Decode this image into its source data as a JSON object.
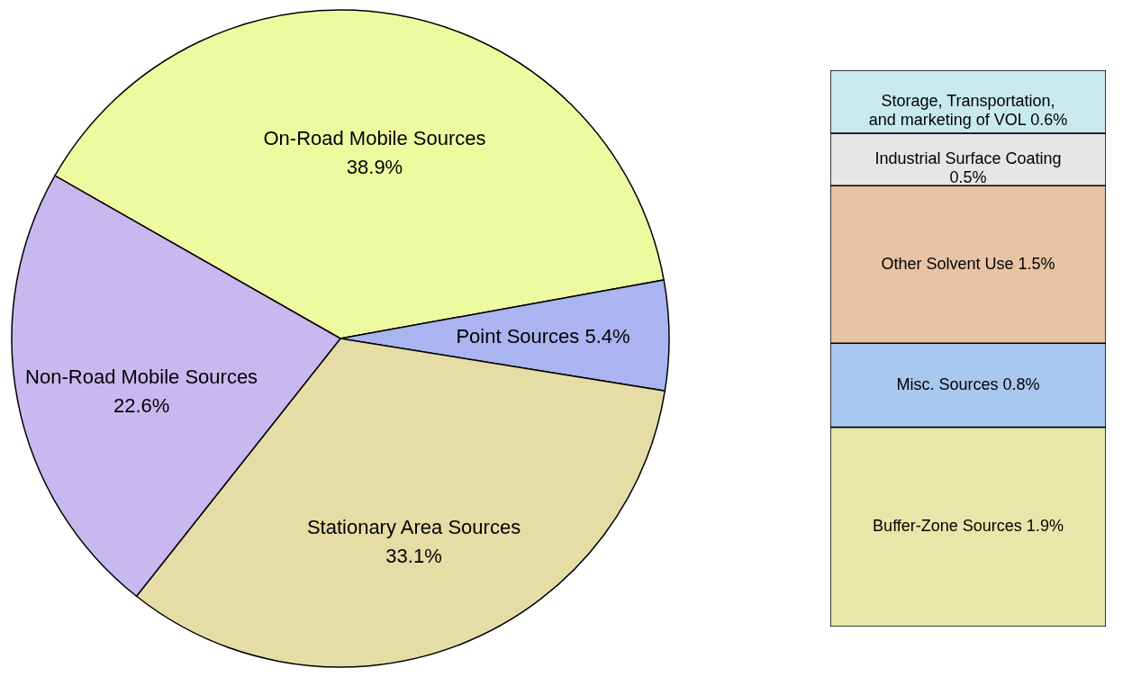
{
  "chart_data": [
    {
      "type": "pie",
      "categories": [
        "On-Road Mobile Sources",
        "Point Sources",
        "Stationary Area Sources",
        "Non-Road Mobile Sources"
      ],
      "values": [
        38.9,
        5.4,
        33.1,
        22.6
      ],
      "value_labels": [
        "38.9%",
        "5.4%",
        "33.1%",
        "22.6%"
      ],
      "colors": [
        "#eefaa0",
        "#aab4f0",
        "#e6dca6",
        "#c8b8f0"
      ]
    },
    {
      "type": "bar",
      "stacked": true,
      "categories": [
        null
      ],
      "series": [
        {
          "name": "Buffer-Zone Sources",
          "color": "#e8e6a8",
          "values": [
            1.9
          ],
          "value_labels": [
            "1.9%"
          ]
        },
        {
          "name": "Misc. Sources",
          "color": "#a8c8f0",
          "values": [
            0.8
          ],
          "value_labels": [
            "0.8%"
          ]
        },
        {
          "name": "Other Solvent Use",
          "color": "#e8c4a4",
          "values": [
            1.5
          ],
          "value_labels": [
            "1.5%"
          ]
        },
        {
          "name": "Industrial Surface Coating",
          "color": "#e6e6e6",
          "values": [
            0.5
          ],
          "value_labels": [
            "0.5%"
          ]
        },
        {
          "name": "Storage, Transportation, and marketing of VOL",
          "color": "#c8eaee",
          "values": [
            0.6
          ],
          "value_labels": [
            "0.6%"
          ]
        }
      ]
    }
  ]
}
